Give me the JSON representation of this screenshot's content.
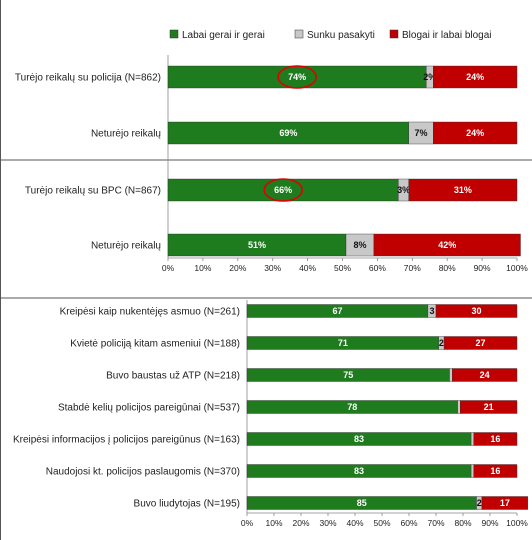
{
  "chart_data": [
    {
      "type": "bar",
      "orientation": "horizontal",
      "stacked": true,
      "unit": "%",
      "legend": {
        "placement": "top",
        "entries": [
          "Labai gerai ir gerai",
          "Sunku pasakyti",
          "Blogai ir labai blogai"
        ]
      },
      "categories": [
        "Turėjo reikalų su policija  (N=862)",
        "Neturėjo reikalų",
        "Turėjo reikalų su BPC (N=867)",
        "Neturėjo reikalų"
      ],
      "series": [
        {
          "name": "Labai gerai ir gerai",
          "values": [
            74,
            69,
            66,
            51
          ],
          "labels": [
            "74%",
            "69%",
            "66%",
            "51%"
          ]
        },
        {
          "name": "Sunku pasakyti",
          "values": [
            2,
            7,
            3,
            8
          ],
          "labels": [
            "2%",
            "7%",
            "3%",
            "8%"
          ]
        },
        {
          "name": "Blogai ir labai blogai",
          "values": [
            24,
            24,
            31,
            42
          ],
          "labels": [
            "24%",
            "24%",
            "31%",
            "42%"
          ]
        }
      ],
      "xlim": [
        0,
        100
      ],
      "xticks": [
        "0%",
        "10%",
        "20%",
        "30%",
        "40%",
        "50%",
        "60%",
        "70%",
        "80%",
        "90%",
        "100%"
      ],
      "highlighted": [
        "74%",
        "66%"
      ],
      "colors": {
        "good": "#1e7b1e",
        "neutral": "#c8c8c8",
        "bad": "#c00000",
        "highlight_circle": "#e00000"
      }
    },
    {
      "type": "bar",
      "orientation": "horizontal",
      "stacked": true,
      "categories": [
        "Kreipėsi kaip nukentėjęs asmuo (N=261)",
        "Kvietė policiją kitam asmeniui (N=188)",
        "Buvo baustas už ATP (N=218)",
        "Stabdė kelių policijos pareigūnai (N=537)",
        "Kreipėsi informacijos į policijos pareigūnus (N=163)",
        "Naudojosi kt. policijos paslaugomis (N=370)",
        "Buvo liudytojas (N=195)"
      ],
      "series": [
        {
          "name": "Labai gerai ir gerai",
          "values": [
            67,
            71,
            75,
            78,
            83,
            83,
            85
          ],
          "labels": [
            "67",
            "71",
            "75",
            "78",
            "83",
            "83",
            "85"
          ]
        },
        {
          "name": "Sunku pasakyti",
          "values": [
            3,
            2,
            1,
            1,
            1,
            1,
            2
          ],
          "labels": [
            "3",
            "2",
            "",
            "",
            "",
            "",
            "2"
          ]
        },
        {
          "name": "Blogai ir labai blogai",
          "values": [
            30,
            27,
            24,
            21,
            16,
            16,
            17
          ],
          "labels": [
            "30",
            "27",
            "24",
            "21",
            "16",
            "16",
            "17"
          ]
        }
      ],
      "xlim": [
        0,
        100
      ],
      "xticks": [
        "0%",
        "10%",
        "20%",
        "30%",
        "40%",
        "50%",
        "60%",
        "70%",
        "80%",
        "90%",
        "100%"
      ],
      "colors": {
        "good": "#1e7b1e",
        "neutral": "#c8c8c8",
        "bad": "#c00000"
      }
    }
  ]
}
